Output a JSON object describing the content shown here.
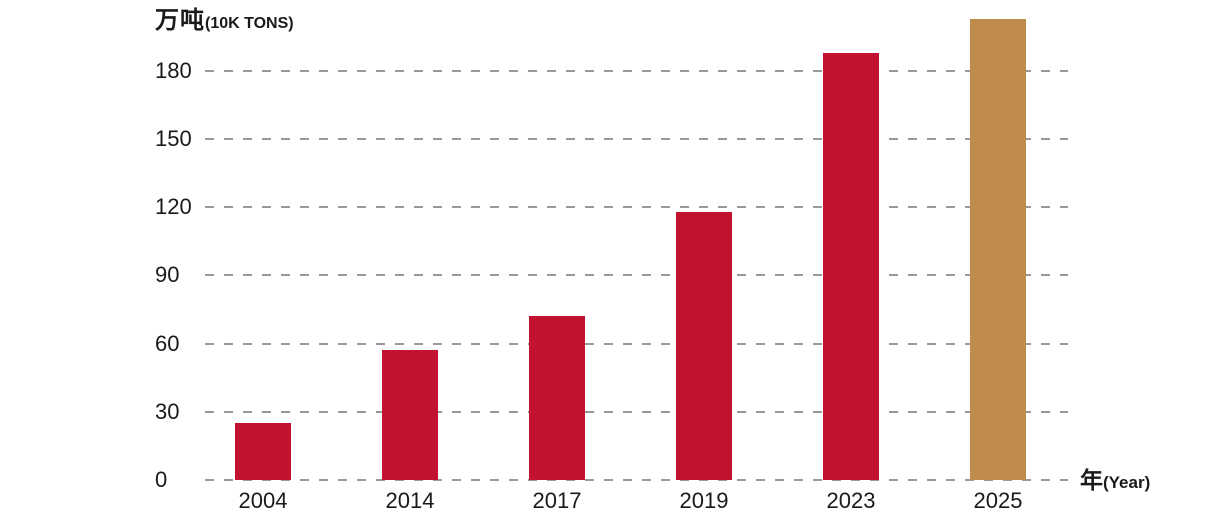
{
  "chart_data": {
    "type": "bar",
    "title": "",
    "y_axis_unit_cjk": "万吨",
    "y_axis_unit_en": "(10K TONS)",
    "x_axis_label_cjk": "年",
    "x_axis_label_en": "(Year)",
    "categories": [
      "2004",
      "2014",
      "2017",
      "2019",
      "2023",
      "2025"
    ],
    "values": [
      25,
      57,
      72,
      118,
      188,
      203
    ],
    "yticks": [
      0,
      30,
      60,
      90,
      120,
      150,
      180
    ],
    "ylim": [
      0,
      203
    ],
    "axis_max_tick": 180,
    "grid": "horizontal-dashed",
    "legend": "none",
    "colors": {
      "bar_default": "#c1122f",
      "bar_highlight": "#c08c4d",
      "highlight_index": 5,
      "gridline": "#999999",
      "text": "#1a1a1a"
    }
  }
}
